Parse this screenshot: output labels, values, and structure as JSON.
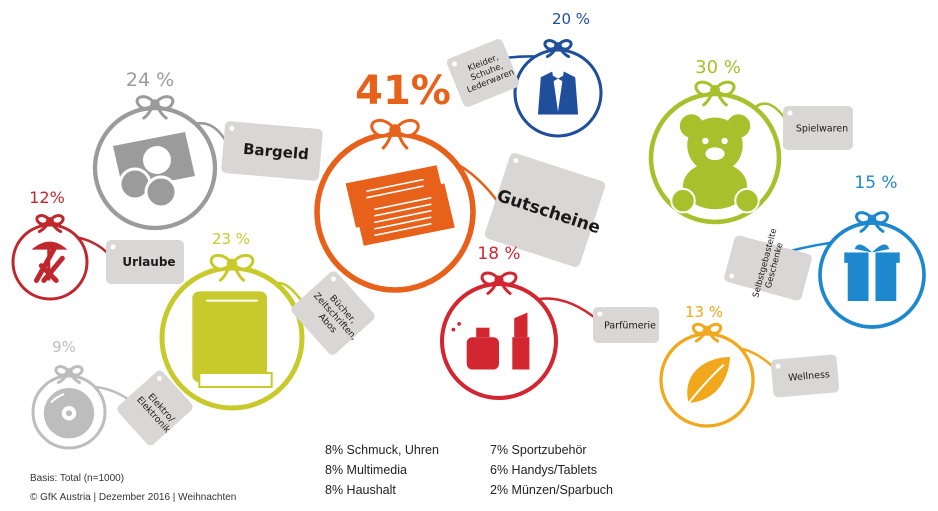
{
  "chart_data": {
    "type": "bubble",
    "unit": "%",
    "items": [
      {
        "id": "gutscheine",
        "label": "Gutscheine",
        "value": 41,
        "color": "#e8611a",
        "icon": "voucher-tickets-icon"
      },
      {
        "id": "bargeld",
        "label": "Bargeld",
        "value": 24,
        "color": "#9b9b9b",
        "icon": "cash-coins-icon"
      },
      {
        "id": "kleider",
        "label": "Kleider, Schuhe, Lederwaren",
        "lines": [
          "Kleider,",
          "Schuhe,",
          "Lederwaren"
        ],
        "value": 20,
        "color": "#1f4e9a",
        "icon": "tuxedo-icon"
      },
      {
        "id": "spielwaren",
        "label": "Spielwaren",
        "value": 30,
        "color": "#a7c02b",
        "icon": "teddy-bear-icon"
      },
      {
        "id": "selbstgebastelte",
        "label": "Selbstgebastelte Geschenke",
        "lines": [
          "Selbstgebastelte",
          "Geschenke"
        ],
        "value": 15,
        "color": "#1e88cf",
        "icon": "gift-box-icon"
      },
      {
        "id": "urlaube",
        "label": "Urlaube",
        "value": 12,
        "color": "#c0272d",
        "icon": "deck-chair-icon"
      },
      {
        "id": "buecher",
        "label": "Bücher, Zeitschriften, Abos",
        "lines": [
          "Bücher,",
          "Zeitschriften,",
          "Abos"
        ],
        "value": 23,
        "color": "#c8c92a",
        "icon": "book-icon"
      },
      {
        "id": "parfuemerie",
        "label": "Parfümerie",
        "value": 18,
        "color": "#d22630",
        "icon": "perfume-lipstick-icon"
      },
      {
        "id": "wellness",
        "label": "Wellness",
        "value": 13,
        "color": "#f2a81d",
        "icon": "leaf-icon"
      },
      {
        "id": "elektro",
        "label": "Elektro/ Elektronik",
        "lines": [
          "Elektro/",
          "Elektronik"
        ],
        "value": 9,
        "color": "#bdbdbd",
        "icon": "disc-icon"
      }
    ],
    "others": [
      {
        "text": "8% Schmuck, Uhren",
        "value": 8
      },
      {
        "text": "8% Multimedia",
        "value": 8
      },
      {
        "text": "8% Haushalt",
        "value": 8
      },
      {
        "text": "7% Sportzubehör",
        "value": 7
      },
      {
        "text": "6% Handys/Tablets",
        "value": 6
      },
      {
        "text": "2% Münzen/Sparbuch",
        "value": 2
      }
    ]
  },
  "footer": {
    "basis": "Basis: Total (n=1000)",
    "source": "© GfK Austria | Dezember 2016 | Weihnachten"
  }
}
